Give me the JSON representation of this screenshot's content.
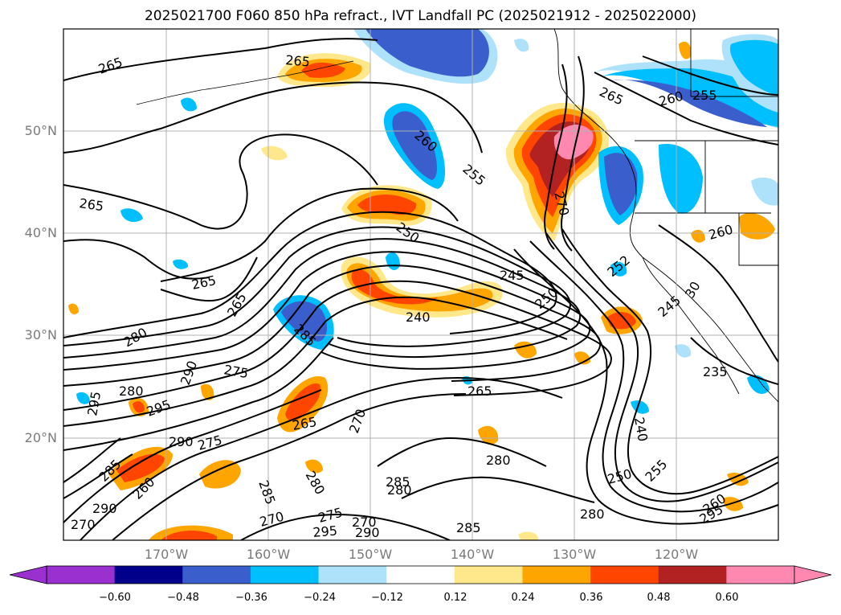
{
  "title": "2025021700 F060 850 hPa refract., IVT Landfall PC (2025021912 - 2025022000)",
  "lat_labels": [
    "50°N",
    "40°N",
    "30°N",
    "20°N"
  ],
  "lon_labels": [
    "170°W",
    "160°W",
    "150°W",
    "140°W",
    "130°W",
    "120°W"
  ],
  "contour_labels": [
    "265",
    "265",
    "265",
    "260",
    "255",
    "265",
    "260",
    "255",
    "265",
    "250",
    "270",
    "260",
    "245",
    "240",
    "265",
    "280",
    "285",
    "252",
    "250",
    "245",
    "30",
    "235",
    "275",
    "265",
    "290",
    "280",
    "295",
    "295",
    "290",
    "275",
    "270",
    "280",
    "285",
    "265",
    "280",
    "240",
    "270",
    "285",
    "280",
    "250",
    "255",
    "280",
    "275",
    "270",
    "285",
    "290",
    "295",
    "260",
    "260",
    "290",
    "270",
    "285",
    "295"
  ],
  "colorbar": {
    "ticks": [
      "−0.60",
      "−0.48",
      "−0.36",
      "−0.24",
      "−0.12",
      "0.12",
      "0.24",
      "0.36",
      "0.48",
      "0.60"
    ],
    "colors": [
      "#9b30d0",
      "#00008b",
      "#3a5fcd",
      "#00bfff",
      "#aee2fa",
      "#ffffff",
      "#ffe88c",
      "#ffa500",
      "#ff4500",
      "#b22222",
      "#ff88b0"
    ]
  }
}
